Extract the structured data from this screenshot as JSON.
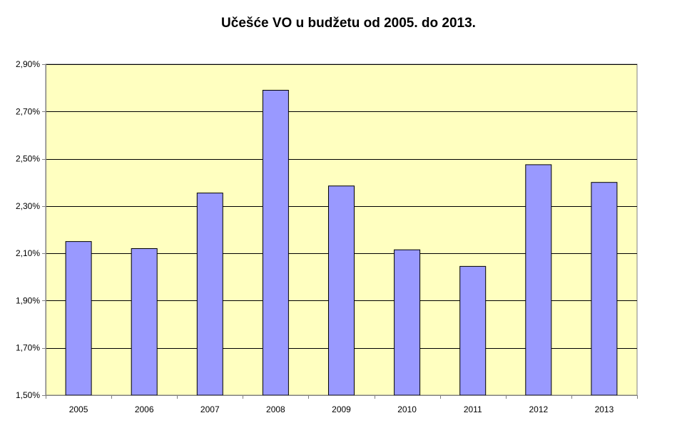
{
  "chart_data": {
    "type": "bar",
    "title": "Učešće VO u budžetu od 2005. do 2013.",
    "xlabel": "",
    "ylabel": "",
    "categories": [
      "2005",
      "2006",
      "2007",
      "2008",
      "2009",
      "2010",
      "2011",
      "2012",
      "2013"
    ],
    "values": [
      2.15,
      2.12,
      2.355,
      2.79,
      2.385,
      2.115,
      2.045,
      2.475,
      2.4
    ],
    "value_unit": "percent",
    "ylim": [
      1.5,
      2.9
    ],
    "y_ticks": [
      1.5,
      1.7,
      1.9,
      2.1,
      2.3,
      2.5,
      2.7,
      2.9
    ],
    "y_tick_labels": [
      "1,50%",
      "1,70%",
      "1,90%",
      "2,10%",
      "2,30%",
      "2,50%",
      "2,70%",
      "2,90%"
    ],
    "grid": true,
    "legend": "none",
    "colors": {
      "bar_fill": "#9999ff",
      "bar_stroke": "#000000",
      "plot_background": "#ffffc0",
      "gridline": "#000000",
      "axis": "#808080"
    }
  }
}
